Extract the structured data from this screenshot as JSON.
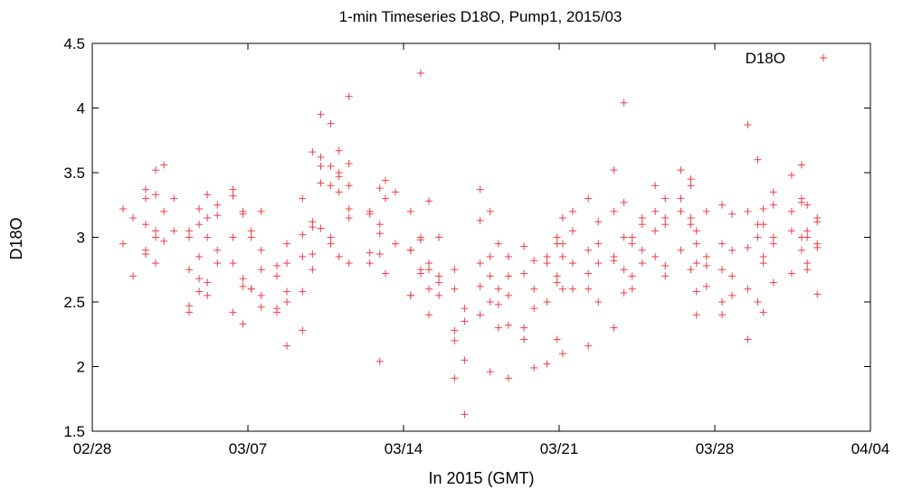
{
  "chart_data": {
    "type": "scatter",
    "title": "1-min Timeseries D18O, Pump1, 2015/03",
    "xlabel": "In 2015 (GMT)",
    "ylabel": "D18O",
    "xlim": [
      "2015-02-28",
      "2015-04-04"
    ],
    "ylim": [
      1.5,
      4.5
    ],
    "x_ticks": [
      "02/28",
      "03/07",
      "03/14",
      "03/21",
      "03/28",
      "04/04"
    ],
    "y_ticks": [
      "1.5",
      "2",
      "2.5",
      "3",
      "3.5",
      "4",
      "4.5"
    ],
    "legend_position": "top-right",
    "grid": false,
    "marker": "+",
    "color": "#e8404a",
    "series": [
      {
        "name": "D18O",
        "points": [
          [
            "2015-03-01",
            3.22
          ],
          [
            "2015-03-01",
            3.15
          ],
          [
            "2015-03-01",
            2.95
          ],
          [
            "2015-03-01",
            2.7
          ],
          [
            "2015-03-02",
            3.33
          ],
          [
            "2015-03-02",
            3.1
          ],
          [
            "2015-03-02",
            3.05
          ],
          [
            "2015-03-02",
            2.9
          ],
          [
            "2015-03-02",
            2.8
          ],
          [
            "2015-03-02",
            3.37
          ],
          [
            "2015-03-02",
            3.52
          ],
          [
            "2015-03-02",
            3.3
          ],
          [
            "2015-03-02",
            3.0
          ],
          [
            "2015-03-02",
            2.87
          ],
          [
            "2015-03-03",
            3.56
          ],
          [
            "2015-03-03",
            3.3
          ],
          [
            "2015-03-03",
            3.2
          ],
          [
            "2015-03-03",
            3.05
          ],
          [
            "2015-03-03",
            2.97
          ],
          [
            "2015-03-04",
            3.1
          ],
          [
            "2015-03-04",
            3.0
          ],
          [
            "2015-03-04",
            2.85
          ],
          [
            "2015-03-04",
            2.75
          ],
          [
            "2015-03-04",
            2.58
          ],
          [
            "2015-03-04",
            2.42
          ],
          [
            "2015-03-04",
            3.22
          ],
          [
            "2015-03-04",
            3.05
          ],
          [
            "2015-03-04",
            2.68
          ],
          [
            "2015-03-04",
            2.47
          ],
          [
            "2015-03-05",
            3.33
          ],
          [
            "2015-03-05",
            3.17
          ],
          [
            "2015-03-05",
            3.0
          ],
          [
            "2015-03-05",
            2.8
          ],
          [
            "2015-03-05",
            2.65
          ],
          [
            "2015-03-05",
            3.25
          ],
          [
            "2015-03-05",
            3.15
          ],
          [
            "2015-03-05",
            2.9
          ],
          [
            "2015-03-05",
            2.55
          ],
          [
            "2015-03-06",
            3.37
          ],
          [
            "2015-03-06",
            3.2
          ],
          [
            "2015-03-06",
            3.0
          ],
          [
            "2015-03-06",
            2.62
          ],
          [
            "2015-03-06",
            2.42
          ],
          [
            "2015-03-06",
            2.33
          ],
          [
            "2015-03-06",
            3.32
          ],
          [
            "2015-03-06",
            3.18
          ],
          [
            "2015-03-06",
            2.8
          ],
          [
            "2015-03-06",
            2.68
          ],
          [
            "2015-03-07",
            3.2
          ],
          [
            "2015-03-07",
            3.0
          ],
          [
            "2015-03-07",
            2.75
          ],
          [
            "2015-03-07",
            2.6
          ],
          [
            "2015-03-07",
            2.46
          ],
          [
            "2015-03-07",
            3.05
          ],
          [
            "2015-03-07",
            2.9
          ],
          [
            "2015-03-07",
            2.6
          ],
          [
            "2015-03-07",
            2.55
          ],
          [
            "2015-03-08",
            2.8
          ],
          [
            "2015-03-08",
            2.7
          ],
          [
            "2015-03-08",
            2.5
          ],
          [
            "2015-03-08",
            2.42
          ],
          [
            "2015-03-08",
            2.95
          ],
          [
            "2015-03-08",
            2.78
          ],
          [
            "2015-03-08",
            2.58
          ],
          [
            "2015-03-08",
            2.45
          ],
          [
            "2015-03-08",
            2.16
          ],
          [
            "2015-03-09",
            3.66
          ],
          [
            "2015-03-09",
            3.3
          ],
          [
            "2015-03-09",
            3.08
          ],
          [
            "2015-03-09",
            3.02
          ],
          [
            "2015-03-09",
            2.87
          ],
          [
            "2015-03-09",
            2.28
          ],
          [
            "2015-03-09",
            3.12
          ],
          [
            "2015-03-09",
            2.85
          ],
          [
            "2015-03-09",
            2.75
          ],
          [
            "2015-03-09",
            2.58
          ],
          [
            "2015-03-10",
            3.55
          ],
          [
            "2015-03-10",
            3.4
          ],
          [
            "2015-03-10",
            3.07
          ],
          [
            "2015-03-10",
            2.95
          ],
          [
            "2015-03-10",
            3.95
          ],
          [
            "2015-03-10",
            3.88
          ],
          [
            "2015-03-10",
            3.62
          ],
          [
            "2015-03-10",
            3.55
          ],
          [
            "2015-03-10",
            3.42
          ],
          [
            "2015-03-10",
            3.0
          ],
          [
            "2015-03-11",
            4.09
          ],
          [
            "2015-03-11",
            3.67
          ],
          [
            "2015-03-11",
            3.57
          ],
          [
            "2015-03-11",
            3.47
          ],
          [
            "2015-03-11",
            3.15
          ],
          [
            "2015-03-11",
            2.85
          ],
          [
            "2015-03-11",
            2.8
          ],
          [
            "2015-03-11",
            3.5
          ],
          [
            "2015-03-11",
            3.4
          ],
          [
            "2015-03-11",
            3.35
          ],
          [
            "2015-03-11",
            3.22
          ],
          [
            "2015-03-12",
            3.38
          ],
          [
            "2015-03-12",
            3.2
          ],
          [
            "2015-03-12",
            3.1
          ],
          [
            "2015-03-12",
            2.8
          ],
          [
            "2015-03-12",
            2.04
          ],
          [
            "2015-03-12",
            3.18
          ],
          [
            "2015-03-12",
            3.03
          ],
          [
            "2015-03-12",
            2.88
          ],
          [
            "2015-03-12",
            2.87
          ],
          [
            "2015-03-13",
            3.44
          ],
          [
            "2015-03-13",
            3.35
          ],
          [
            "2015-03-13",
            3.3
          ],
          [
            "2015-03-13",
            2.95
          ],
          [
            "2015-03-13",
            2.72
          ],
          [
            "2015-03-14",
            3.0
          ],
          [
            "2015-03-14",
            2.9
          ],
          [
            "2015-03-14",
            2.72
          ],
          [
            "2015-03-14",
            2.55
          ],
          [
            "2015-03-14",
            4.27
          ],
          [
            "2015-03-14",
            3.2
          ],
          [
            "2015-03-14",
            2.98
          ],
          [
            "2015-03-14",
            2.9
          ],
          [
            "2015-03-14",
            2.75
          ],
          [
            "2015-03-14",
            2.55
          ],
          [
            "2015-03-15",
            2.8
          ],
          [
            "2015-03-15",
            2.65
          ],
          [
            "2015-03-15",
            2.6
          ],
          [
            "2015-03-15",
            2.55
          ],
          [
            "2015-03-15",
            3.28
          ],
          [
            "2015-03-15",
            3.0
          ],
          [
            "2015-03-15",
            2.75
          ],
          [
            "2015-03-15",
            2.7
          ],
          [
            "2015-03-15",
            2.4
          ],
          [
            "2015-03-16",
            2.6
          ],
          [
            "2015-03-16",
            2.35
          ],
          [
            "2015-03-16",
            2.2
          ],
          [
            "2015-03-16",
            2.05
          ],
          [
            "2015-03-16",
            1.91
          ],
          [
            "2015-03-16",
            1.63
          ],
          [
            "2015-03-16",
            2.75
          ],
          [
            "2015-03-16",
            2.45
          ],
          [
            "2015-03-16",
            2.28
          ],
          [
            "2015-03-17",
            3.37
          ],
          [
            "2015-03-17",
            3.2
          ],
          [
            "2015-03-17",
            2.8
          ],
          [
            "2015-03-17",
            2.7
          ],
          [
            "2015-03-17",
            2.4
          ],
          [
            "2015-03-17",
            1.96
          ],
          [
            "2015-03-17",
            3.13
          ],
          [
            "2015-03-17",
            2.85
          ],
          [
            "2015-03-17",
            2.62
          ],
          [
            "2015-03-17",
            2.5
          ],
          [
            "2015-03-18",
            2.85
          ],
          [
            "2015-03-18",
            2.6
          ],
          [
            "2015-03-18",
            2.55
          ],
          [
            "2015-03-18",
            2.3
          ],
          [
            "2015-03-18",
            1.91
          ],
          [
            "2015-03-18",
            2.95
          ],
          [
            "2015-03-18",
            2.7
          ],
          [
            "2015-03-18",
            2.48
          ],
          [
            "2015-03-18",
            2.32
          ],
          [
            "2015-03-19",
            2.82
          ],
          [
            "2015-03-19",
            2.72
          ],
          [
            "2015-03-19",
            2.45
          ],
          [
            "2015-03-19",
            2.21
          ],
          [
            "2015-03-19",
            1.99
          ],
          [
            "2015-03-19",
            2.93
          ],
          [
            "2015-03-19",
            2.6
          ],
          [
            "2015-03-19",
            2.3
          ],
          [
            "2015-03-20",
            2.95
          ],
          [
            "2015-03-20",
            2.8
          ],
          [
            "2015-03-20",
            2.65
          ],
          [
            "2015-03-20",
            2.5
          ],
          [
            "2015-03-20",
            2.21
          ],
          [
            "2015-03-20",
            2.02
          ],
          [
            "2015-03-20",
            3.0
          ],
          [
            "2015-03-20",
            2.85
          ],
          [
            "2015-03-20",
            2.7
          ],
          [
            "2015-03-21",
            3.15
          ],
          [
            "2015-03-21",
            3.05
          ],
          [
            "2015-03-21",
            2.85
          ],
          [
            "2015-03-21",
            2.6
          ],
          [
            "2015-03-21",
            2.1
          ],
          [
            "2015-03-21",
            3.2
          ],
          [
            "2015-03-21",
            2.95
          ],
          [
            "2015-03-21",
            2.8
          ],
          [
            "2015-03-21",
            2.6
          ],
          [
            "2015-03-22",
            3.3
          ],
          [
            "2015-03-22",
            3.12
          ],
          [
            "2015-03-22",
            2.9
          ],
          [
            "2015-03-22",
            2.8
          ],
          [
            "2015-03-22",
            2.72
          ],
          [
            "2015-03-22",
            2.95
          ],
          [
            "2015-03-22",
            2.6
          ],
          [
            "2015-03-22",
            2.5
          ],
          [
            "2015-03-22",
            2.16
          ],
          [
            "2015-03-23",
            3.2
          ],
          [
            "2015-03-23",
            3.0
          ],
          [
            "2015-03-23",
            2.82
          ],
          [
            "2015-03-23",
            2.75
          ],
          [
            "2015-03-23",
            2.3
          ],
          [
            "2015-03-23",
            4.04
          ],
          [
            "2015-03-23",
            3.52
          ],
          [
            "2015-03-23",
            3.27
          ],
          [
            "2015-03-23",
            2.85
          ],
          [
            "2015-03-23",
            2.57
          ],
          [
            "2015-03-24",
            3.1
          ],
          [
            "2015-03-24",
            2.95
          ],
          [
            "2015-03-24",
            2.8
          ],
          [
            "2015-03-24",
            2.7
          ],
          [
            "2015-03-24",
            3.15
          ],
          [
            "2015-03-24",
            3.0
          ],
          [
            "2015-03-24",
            2.9
          ],
          [
            "2015-03-24",
            2.6
          ],
          [
            "2015-03-25",
            3.3
          ],
          [
            "2015-03-25",
            3.2
          ],
          [
            "2015-03-25",
            3.1
          ],
          [
            "2015-03-25",
            2.85
          ],
          [
            "2015-03-25",
            2.78
          ],
          [
            "2015-03-25",
            3.4
          ],
          [
            "2015-03-25",
            3.15
          ],
          [
            "2015-03-25",
            3.05
          ],
          [
            "2015-03-25",
            2.7
          ],
          [
            "2015-03-26",
            3.45
          ],
          [
            "2015-03-26",
            3.2
          ],
          [
            "2015-03-26",
            3.1
          ],
          [
            "2015-03-26",
            2.9
          ],
          [
            "2015-03-26",
            2.75
          ],
          [
            "2015-03-26",
            3.52
          ],
          [
            "2015-03-26",
            3.4
          ],
          [
            "2015-03-26",
            3.3
          ],
          [
            "2015-03-26",
            3.15
          ],
          [
            "2015-03-27",
            3.05
          ],
          [
            "2015-03-27",
            2.85
          ],
          [
            "2015-03-27",
            2.8
          ],
          [
            "2015-03-27",
            2.62
          ],
          [
            "2015-03-27",
            2.4
          ],
          [
            "2015-03-27",
            3.2
          ],
          [
            "2015-03-27",
            2.95
          ],
          [
            "2015-03-27",
            2.78
          ],
          [
            "2015-03-27",
            2.58
          ],
          [
            "2015-03-28",
            3.25
          ],
          [
            "2015-03-28",
            3.18
          ],
          [
            "2015-03-28",
            2.95
          ],
          [
            "2015-03-28",
            2.7
          ],
          [
            "2015-03-28",
            2.5
          ],
          [
            "2015-03-28",
            2.9
          ],
          [
            "2015-03-28",
            2.75
          ],
          [
            "2015-03-28",
            2.55
          ],
          [
            "2015-03-28",
            2.4
          ],
          [
            "2015-03-29",
            3.87
          ],
          [
            "2015-03-29",
            3.6
          ],
          [
            "2015-03-29",
            3.2
          ],
          [
            "2015-03-29",
            3.1
          ],
          [
            "2015-03-29",
            2.92
          ],
          [
            "2015-03-29",
            3.0
          ],
          [
            "2015-03-29",
            2.6
          ],
          [
            "2015-03-29",
            2.5
          ],
          [
            "2015-03-29",
            2.21
          ],
          [
            "2015-03-30",
            3.35
          ],
          [
            "2015-03-30",
            3.22
          ],
          [
            "2015-03-30",
            3.0
          ],
          [
            "2015-03-30",
            2.8
          ],
          [
            "2015-03-30",
            2.65
          ],
          [
            "2015-03-30",
            2.42
          ],
          [
            "2015-03-30",
            3.25
          ],
          [
            "2015-03-30",
            3.1
          ],
          [
            "2015-03-30",
            2.95
          ],
          [
            "2015-03-30",
            2.85
          ],
          [
            "2015-03-31",
            3.56
          ],
          [
            "2015-03-31",
            3.48
          ],
          [
            "2015-03-31",
            3.3
          ],
          [
            "2015-03-31",
            3.2
          ],
          [
            "2015-03-31",
            3.0
          ],
          [
            "2015-03-31",
            2.72
          ],
          [
            "2015-03-31",
            3.27
          ],
          [
            "2015-03-31",
            3.05
          ],
          [
            "2015-03-31",
            2.9
          ],
          [
            "2015-04-01",
            3.25
          ],
          [
            "2015-04-01",
            3.12
          ],
          [
            "2015-04-01",
            3.0
          ],
          [
            "2015-04-01",
            2.95
          ],
          [
            "2015-04-01",
            2.8
          ],
          [
            "2015-04-01",
            3.15
          ],
          [
            "2015-04-01",
            3.05
          ],
          [
            "2015-04-01",
            2.92
          ],
          [
            "2015-04-01",
            2.75
          ],
          [
            "2015-04-01",
            2.56
          ]
        ]
      }
    ]
  }
}
